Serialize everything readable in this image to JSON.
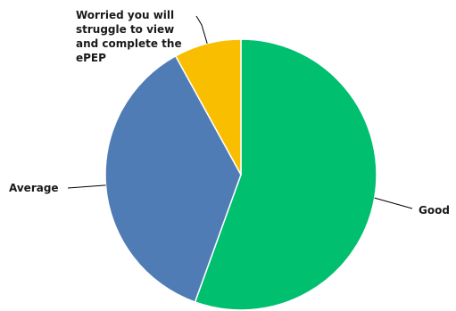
{
  "chart_data": {
    "type": "pie",
    "title": "",
    "slices": [
      {
        "label": "Good",
        "value": 55.5,
        "color": "#00BF6F"
      },
      {
        "label": "Average",
        "value": 36.5,
        "color": "#507CB6"
      },
      {
        "label": "Worried you will struggle to view and complete the ePEP",
        "value": 8.0,
        "color": "#F9BE00"
      }
    ],
    "start_angle_deg": 0,
    "direction": "clockwise",
    "legend": "none",
    "data_labels": "outside-with-leader-lines"
  },
  "labels": {
    "good": "Good",
    "average": "Average",
    "worried": "Worried you will\nstruggle to view\nand complete the\nePEP"
  }
}
